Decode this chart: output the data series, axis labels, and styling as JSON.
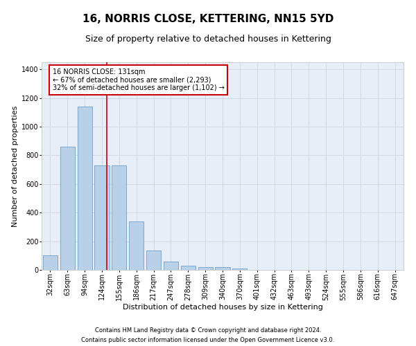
{
  "title": "16, NORRIS CLOSE, KETTERING, NN15 5YD",
  "subtitle": "Size of property relative to detached houses in Kettering",
  "xlabel": "Distribution of detached houses by size in Kettering",
  "ylabel": "Number of detached properties",
  "footnote1": "Contains HM Land Registry data © Crown copyright and database right 2024.",
  "footnote2": "Contains public sector information licensed under the Open Government Licence v3.0.",
  "categories": [
    "32sqm",
    "63sqm",
    "94sqm",
    "124sqm",
    "155sqm",
    "186sqm",
    "217sqm",
    "247sqm",
    "278sqm",
    "309sqm",
    "340sqm",
    "370sqm",
    "401sqm",
    "432sqm",
    "463sqm",
    "493sqm",
    "524sqm",
    "555sqm",
    "586sqm",
    "616sqm",
    "647sqm"
  ],
  "values": [
    100,
    860,
    1140,
    730,
    730,
    340,
    135,
    60,
    30,
    20,
    17,
    12,
    0,
    0,
    0,
    0,
    0,
    0,
    0,
    0,
    0
  ],
  "bar_color": "#b8d0e8",
  "bar_edge_color": "#6aa0cc",
  "grid_color": "#d0d8e8",
  "background_color": "#e8eef8",
  "marker_label": "16 NORRIS CLOSE: 131sqm",
  "annotation_line1": "← 67% of detached houses are smaller (2,293)",
  "annotation_line2": "32% of semi-detached houses are larger (1,102) →",
  "ylim": [
    0,
    1450
  ],
  "yticks": [
    0,
    200,
    400,
    600,
    800,
    1000,
    1200,
    1400
  ],
  "vline_x": 3.28,
  "vline_color": "#cc0000",
  "box_edge_color": "#cc0000",
  "title_fontsize": 11,
  "subtitle_fontsize": 9,
  "axis_label_fontsize": 8,
  "tick_fontsize": 7,
  "annotation_fontsize": 7,
  "footnote_fontsize": 6
}
